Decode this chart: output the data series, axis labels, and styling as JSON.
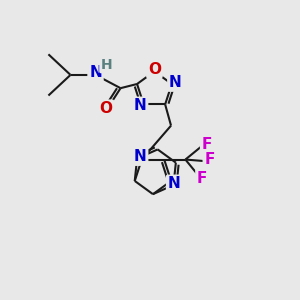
{
  "bg_color": "#e8e8e8",
  "atom_colors": {
    "C": "#000000",
    "N": "#0000cc",
    "O": "#cc0000",
    "F": "#cc00cc",
    "H": "#5a8080"
  },
  "bond_color": "#1a1a1a",
  "bond_width": 1.5,
  "font_size_atom": 11,
  "figsize": [
    3.0,
    3.0
  ],
  "dpi": 100
}
